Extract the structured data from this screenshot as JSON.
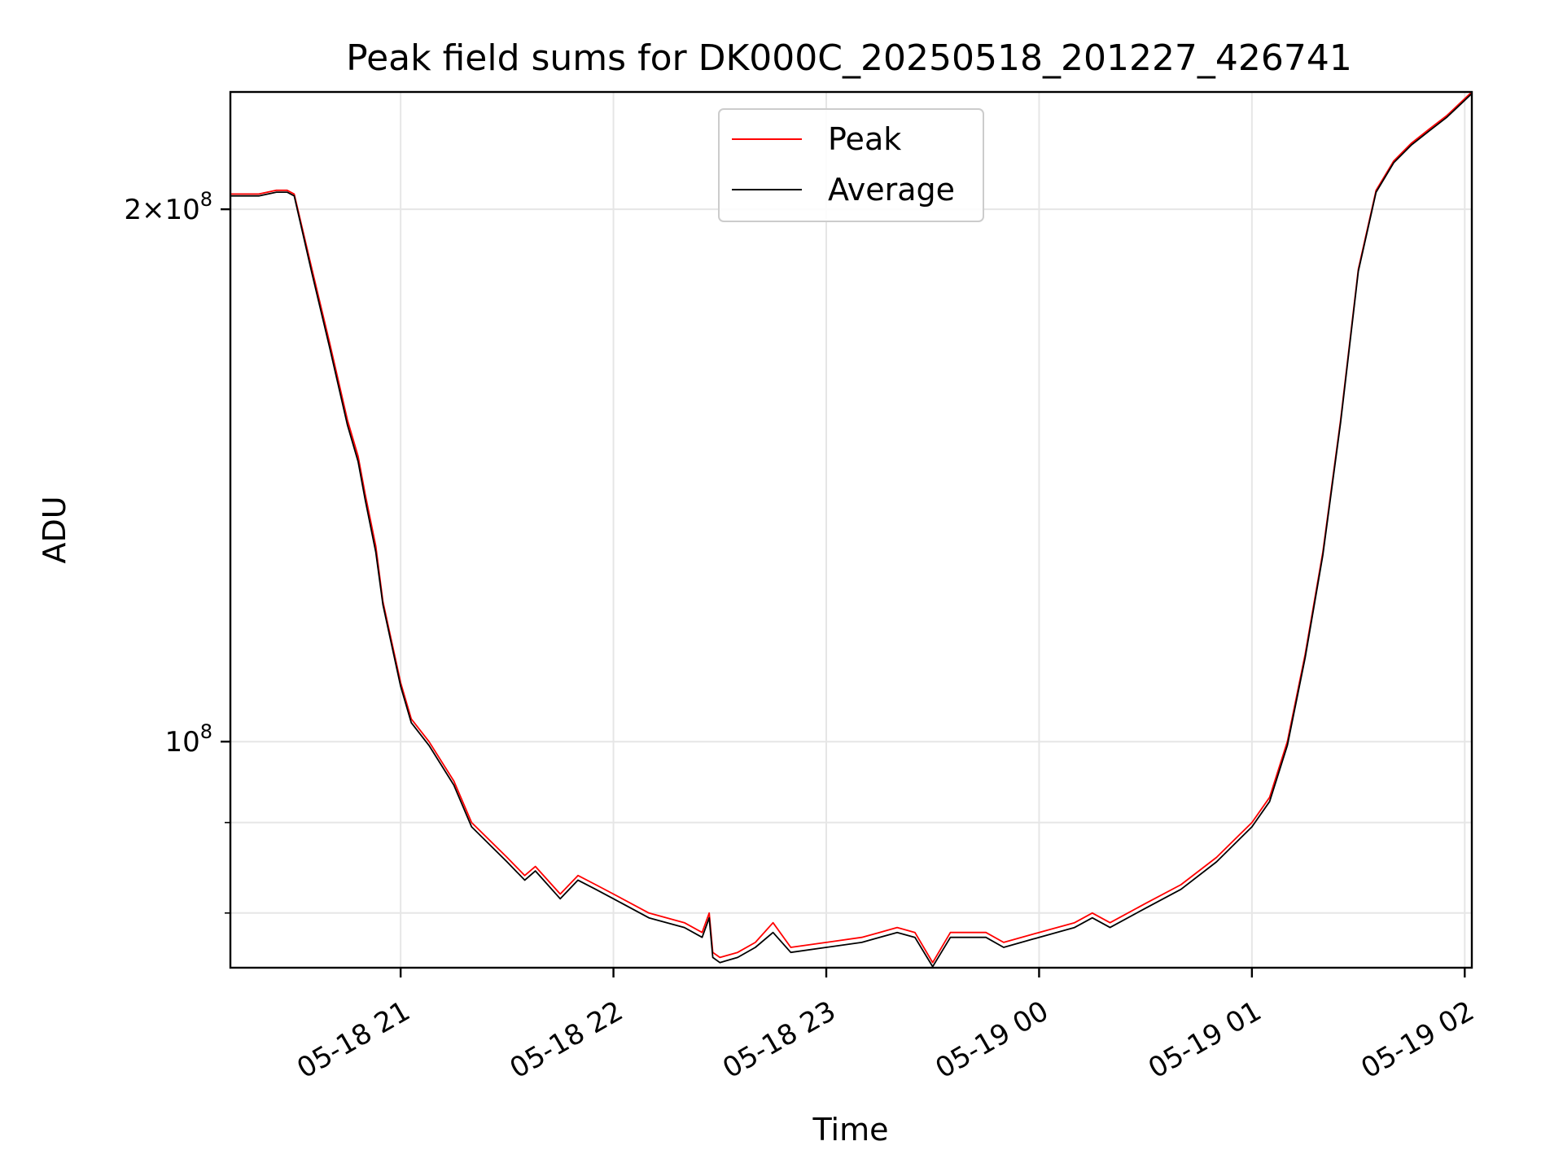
{
  "chart_data": {
    "type": "line",
    "title": "Peak field sums for DK000C_20250518_201227_426741",
    "xlabel": "Time",
    "ylabel": "ADU",
    "x_scale": "time",
    "y_scale": "log",
    "xlim": [
      "2025-05-18 20:12",
      "2025-05-19 02:02"
    ],
    "ylim": [
      74500000,
      233000000
    ],
    "x_ticks": [
      {
        "value": "2025-05-18 21:00",
        "label": "05-18 21"
      },
      {
        "value": "2025-05-18 22:00",
        "label": "05-18 22"
      },
      {
        "value": "2025-05-18 23:00",
        "label": "05-18 23"
      },
      {
        "value": "2025-05-19 00:00",
        "label": "05-19 00"
      },
      {
        "value": "2025-05-19 01:00",
        "label": "05-19 01"
      },
      {
        "value": "2025-05-19 02:00",
        "label": "05-19 02"
      }
    ],
    "y_ticks": [
      {
        "value": 200000000,
        "base": "2×10",
        "exp": "8"
      },
      {
        "value": 100000000,
        "base": "10",
        "exp": "8"
      }
    ],
    "y_minor_ticks": [
      90000000,
      80000000
    ],
    "grid": true,
    "legend_position": "upper-center",
    "series": [
      {
        "name": "Peak",
        "color": "#ff0000",
        "x": [
          "2025-05-18 20:12",
          "2025-05-18 20:20",
          "2025-05-18 20:25",
          "2025-05-18 20:28",
          "2025-05-18 20:30",
          "2025-05-18 20:35",
          "2025-05-18 20:40",
          "2025-05-18 20:45",
          "2025-05-18 20:48",
          "2025-05-18 20:50",
          "2025-05-18 20:53",
          "2025-05-18 20:55",
          "2025-05-18 21:00",
          "2025-05-18 21:03",
          "2025-05-18 21:08",
          "2025-05-18 21:15",
          "2025-05-18 21:20",
          "2025-05-18 21:30",
          "2025-05-18 21:35",
          "2025-05-18 21:38",
          "2025-05-18 21:45",
          "2025-05-18 21:50",
          "2025-05-18 21:55",
          "2025-05-18 22:00",
          "2025-05-18 22:10",
          "2025-05-18 22:20",
          "2025-05-18 22:25",
          "2025-05-18 22:27",
          "2025-05-18 22:28",
          "2025-05-18 22:30",
          "2025-05-18 22:35",
          "2025-05-18 22:40",
          "2025-05-18 22:45",
          "2025-05-18 22:50",
          "2025-05-18 23:00",
          "2025-05-18 23:10",
          "2025-05-18 23:15",
          "2025-05-18 23:20",
          "2025-05-18 23:25",
          "2025-05-18 23:30",
          "2025-05-18 23:35",
          "2025-05-18 23:45",
          "2025-05-18 23:50",
          "2025-05-19 00:00",
          "2025-05-19 00:10",
          "2025-05-19 00:15",
          "2025-05-19 00:20",
          "2025-05-19 00:30",
          "2025-05-19 00:40",
          "2025-05-19 00:50",
          "2025-05-19 01:00",
          "2025-05-19 01:05",
          "2025-05-19 01:10",
          "2025-05-19 01:15",
          "2025-05-19 01:20",
          "2025-05-19 01:25",
          "2025-05-19 01:30",
          "2025-05-19 01:35",
          "2025-05-19 01:40",
          "2025-05-19 01:45",
          "2025-05-19 01:50",
          "2025-05-19 01:55",
          "2025-05-19 02:02"
        ],
        "y": [
          204000000,
          204000000,
          205000000,
          205000000,
          204000000,
          185000000,
          168000000,
          152000000,
          145000000,
          138000000,
          129000000,
          120000000,
          108000000,
          103000000,
          100000000,
          95000000,
          90000000,
          86000000,
          84000000,
          85000000,
          82000000,
          84000000,
          83000000,
          82000000,
          80000000,
          79000000,
          78000000,
          80000000,
          76000000,
          75500000,
          76000000,
          77000000,
          79000000,
          76500000,
          77000000,
          77500000,
          78000000,
          78500000,
          78000000,
          75000000,
          78000000,
          78000000,
          77000000,
          78000000,
          79000000,
          80000000,
          79000000,
          81000000,
          83000000,
          86000000,
          90000000,
          93000000,
          100000000,
          112000000,
          128000000,
          152000000,
          185000000,
          205000000,
          213000000,
          218000000,
          222000000,
          226000000,
          233000000
        ]
      },
      {
        "name": "Average",
        "color": "#000000",
        "x": [
          "2025-05-18 20:12",
          "2025-05-18 20:20",
          "2025-05-18 20:25",
          "2025-05-18 20:28",
          "2025-05-18 20:30",
          "2025-05-18 20:35",
          "2025-05-18 20:40",
          "2025-05-18 20:45",
          "2025-05-18 20:48",
          "2025-05-18 20:50",
          "2025-05-18 20:53",
          "2025-05-18 20:55",
          "2025-05-18 21:00",
          "2025-05-18 21:03",
          "2025-05-18 21:08",
          "2025-05-18 21:15",
          "2025-05-18 21:20",
          "2025-05-18 21:30",
          "2025-05-18 21:35",
          "2025-05-18 21:38",
          "2025-05-18 21:45",
          "2025-05-18 21:50",
          "2025-05-18 21:55",
          "2025-05-18 22:00",
          "2025-05-18 22:10",
          "2025-05-18 22:20",
          "2025-05-18 22:25",
          "2025-05-18 22:27",
          "2025-05-18 22:28",
          "2025-05-18 22:30",
          "2025-05-18 22:35",
          "2025-05-18 22:40",
          "2025-05-18 22:45",
          "2025-05-18 22:50",
          "2025-05-18 23:00",
          "2025-05-18 23:10",
          "2025-05-18 23:15",
          "2025-05-18 23:20",
          "2025-05-18 23:25",
          "2025-05-18 23:30",
          "2025-05-18 23:35",
          "2025-05-18 23:45",
          "2025-05-18 23:50",
          "2025-05-19 00:00",
          "2025-05-19 00:10",
          "2025-05-19 00:15",
          "2025-05-19 00:20",
          "2025-05-19 00:30",
          "2025-05-19 00:40",
          "2025-05-19 00:50",
          "2025-05-19 01:00",
          "2025-05-19 01:05",
          "2025-05-19 01:10",
          "2025-05-19 01:15",
          "2025-05-19 01:20",
          "2025-05-19 01:25",
          "2025-05-19 01:30",
          "2025-05-19 01:35",
          "2025-05-19 01:40",
          "2025-05-19 01:45",
          "2025-05-19 01:50",
          "2025-05-19 01:55",
          "2025-05-19 02:02"
        ],
        "y": [
          203500000,
          203500000,
          204500000,
          204500000,
          203500000,
          184000000,
          167000000,
          151000000,
          144000000,
          137000000,
          128000000,
          119500000,
          107500000,
          102500000,
          99500000,
          94500000,
          89500000,
          85500000,
          83500000,
          84500000,
          81500000,
          83500000,
          82500000,
          81500000,
          79500000,
          78500000,
          77500000,
          79500000,
          75500000,
          75000000,
          75500000,
          76500000,
          78000000,
          76000000,
          76500000,
          77000000,
          77500000,
          78000000,
          77500000,
          74600000,
          77500000,
          77500000,
          76500000,
          77500000,
          78500000,
          79500000,
          78500000,
          80500000,
          82500000,
          85500000,
          89500000,
          92500000,
          99500000,
          111500000,
          127500000,
          151500000,
          184500000,
          204500000,
          212500000,
          217500000,
          221500000,
          225500000,
          232500000
        ]
      }
    ]
  }
}
